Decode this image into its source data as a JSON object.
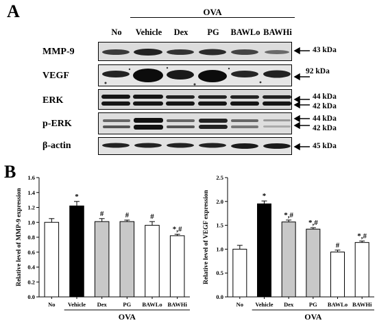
{
  "figure": {
    "panel_a_letter": "A",
    "panel_b_letter": "B",
    "treatment_group": "OVA",
    "lanes": [
      "No",
      "Vehicle",
      "Dex",
      "PG",
      "BAWLo",
      "BAWHi"
    ],
    "blots": [
      {
        "label": "MMP-9",
        "markers": [
          "43 kDa"
        ]
      },
      {
        "label": "VEGF",
        "markers": [
          "92 kDa"
        ]
      },
      {
        "label": "ERK",
        "markers": [
          "44 kDa",
          "42 kDa"
        ]
      },
      {
        "label": "p-ERK",
        "markers": [
          "44 kDa",
          "42 kDa"
        ]
      },
      {
        "label": "β-actin",
        "markers": [
          "45 kDa"
        ]
      }
    ]
  },
  "chart_data": [
    {
      "type": "bar",
      "categories": [
        "No",
        "Vehicle",
        "Dex",
        "PG",
        "BAWLo",
        "BAWHi"
      ],
      "values": [
        1.0,
        1.22,
        1.01,
        1.01,
        0.96,
        0.82
      ],
      "errors": [
        0.05,
        0.06,
        0.04,
        0.02,
        0.05,
        0.02
      ],
      "annotations": [
        "",
        "*",
        "#",
        "#",
        "#",
        "*,#"
      ],
      "bar_colors": [
        "#ffffff",
        "#000000",
        "#c8c8c8",
        "#c8c8c8",
        "#ffffff",
        "#ffffff"
      ],
      "ylabel": "Relative level of MMP-9 expression",
      "xgroup_label": "OVA",
      "ylim": [
        0.0,
        1.6
      ],
      "yticks": [
        "0.0",
        "0.2",
        "0.4",
        "0.6",
        "0.8",
        "1.0",
        "1.2",
        "1.4",
        "1.6"
      ]
    },
    {
      "type": "bar",
      "categories": [
        "No",
        "Vehicle",
        "Dex",
        "PG",
        "BAWLo",
        "BAWHi"
      ],
      "values": [
        1.0,
        1.95,
        1.57,
        1.42,
        0.94,
        1.14
      ],
      "errors": [
        0.08,
        0.06,
        0.04,
        0.03,
        0.04,
        0.03
      ],
      "annotations": [
        "",
        "*",
        "*,#",
        "*,#",
        "#",
        "*,#"
      ],
      "bar_colors": [
        "#ffffff",
        "#000000",
        "#c8c8c8",
        "#c8c8c8",
        "#ffffff",
        "#ffffff"
      ],
      "ylabel": "Relative level of VEGF expression",
      "xgroup_label": "OVA",
      "ylim": [
        0.0,
        2.5
      ],
      "yticks": [
        "0.0",
        "0.5",
        "1.0",
        "1.5",
        "2.0",
        "2.5"
      ]
    }
  ]
}
